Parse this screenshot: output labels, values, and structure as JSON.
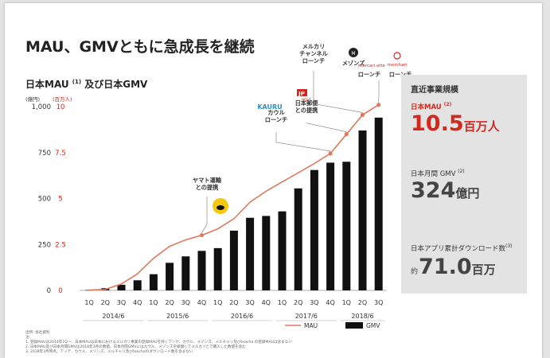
{
  "title": "MAU、GMVともに急成長を継続",
  "subtitle": "日本MAU ",
  "subtitle_sup": "(1)",
  "subtitle_tail": " 及び日本GMV",
  "side_panel": {
    "heading": "直近事業規模",
    "mau_label": "日本MAU ",
    "mau_sup": "(2)",
    "mau_value": "10.5",
    "mau_unit": "百万人",
    "gmv_label": "日本月間 GMV ",
    "gmv_sup": "(2)",
    "gmv_value": "324",
    "gmv_unit": "億円",
    "downloads_label": "日本アプリ累計ダウンロード数",
    "downloads_sup": "(3)",
    "downloads_prefix": "約",
    "downloads_value": "71.0",
    "downloads_unit": "百万",
    "accent_color": "#d2281e"
  },
  "footnotes": [
    "出所: 会社資料",
    "注:",
    "1. 登録MAUは2014年1Q～、日本MAUは日本におけるメルカリ事業の登録MAUを除くアンケ、カウル、メゾンズ、メルチャリ及びteacha の登録MAUは含まない",
    "2. 日本MAU及び日本月間GMVは2018年3月の数値。日本月間GMVにはカウル、メゾンズを総額してメルカリとで購入した数値を含む",
    "3. 2018年3月時点。アッテ、カウル、メゾンズ、メルチャリ及びteachaのダウンロード数を含まない"
  ],
  "chart_data": {
    "type": "bar",
    "categories": [
      "1Q",
      "2Q",
      "3Q",
      "4Q",
      "1Q",
      "2Q",
      "3Q",
      "4Q",
      "1Q",
      "2Q",
      "3Q",
      "4Q",
      "1Q",
      "2Q",
      "3Q",
      "4Q",
      "1Q",
      "2Q",
      "3Q"
    ],
    "year_labels": [
      {
        "label": "2014/6",
        "start": 0,
        "end": 3
      },
      {
        "label": "2015/6",
        "start": 4,
        "end": 7
      },
      {
        "label": "2016/6",
        "start": 8,
        "end": 11
      },
      {
        "label": "2017/6",
        "start": 12,
        "end": 15
      },
      {
        "label": "2018/6",
        "start": 16,
        "end": 18
      }
    ],
    "series": [
      {
        "name": "GMV",
        "kind": "bar",
        "axis": "left",
        "unit": "億円",
        "color": "#111111",
        "values": [
          2,
          12,
          30,
          55,
          88,
          150,
          185,
          215,
          230,
          325,
          395,
          405,
          430,
          555,
          655,
          695,
          700,
          870,
          940
        ]
      },
      {
        "name": "MAU",
        "kind": "line",
        "axis": "right",
        "unit": "百万人",
        "color": "#e07a5c",
        "values": [
          0.02,
          0.05,
          0.35,
          0.9,
          1.75,
          2.4,
          2.75,
          3.0,
          3.35,
          3.9,
          4.8,
          5.4,
          5.9,
          6.4,
          6.9,
          7.45,
          8.5,
          9.55,
          10.1
        ],
        "marker_indices": [
          7,
          15,
          16,
          17,
          18
        ]
      }
    ],
    "ylim_left": [
      0,
      1000
    ],
    "ylim_right": [
      0,
      10
    ],
    "yticks_left": [
      "0",
      "250",
      "500",
      "750",
      "1,000"
    ],
    "yticks_right": [
      "0",
      "2.5",
      "5",
      "7.5",
      "10"
    ],
    "ylabel_left": "(億円)",
    "ylabel_right": "(百万人)",
    "grid": false,
    "legend_position": "bottom-right",
    "annotations": [
      {
        "index": 7,
        "lines": [
          "ヤマト運輸",
          "との提携"
        ]
      },
      {
        "index": 15,
        "lines": [
          "カウル",
          "ローンチ"
        ]
      },
      {
        "index": 16,
        "lines": [
          "日本郵便",
          "との提携"
        ]
      },
      {
        "index": 17,
        "lines": [
          "メルカリ",
          "チャンネル",
          "ローンチ"
        ]
      },
      {
        "index": 17,
        "lines": [
          "メゾンズ"
        ]
      },
      {
        "index": 18,
        "lines": [
          "ローンチ"
        ]
      },
      {
        "index": 18,
        "lines": [
          "ローンチ"
        ]
      }
    ],
    "logos": [
      "KAURU",
      "JP POST",
      "MAISONZ",
      "mercari atte",
      "merchari"
    ]
  }
}
